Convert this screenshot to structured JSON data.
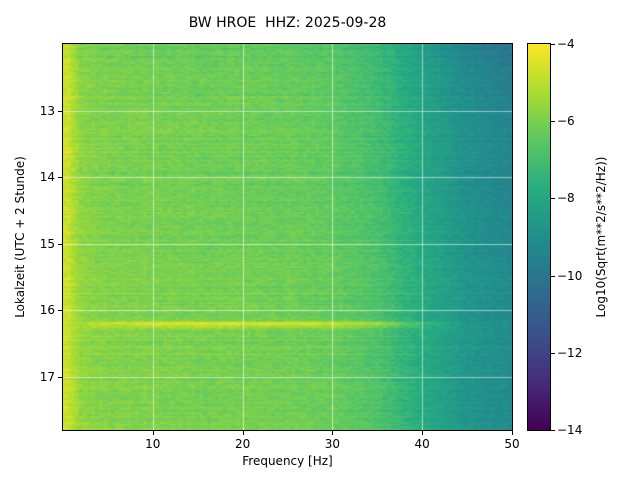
{
  "figure": {
    "background": "#ffffff"
  },
  "chart_data": {
    "type": "heatmap",
    "title": "BW HROE  HHZ: 2025-09-28",
    "xlabel": "Frequency [Hz]",
    "ylabel": "Lokalzeit (UTC + 2 Stunde)",
    "colorbar_label": "Log10(Sqrt(m**2/s**2/Hz))",
    "colormap": "viridis",
    "grid": true,
    "xlim": [
      0,
      50
    ],
    "tlim": [
      12.0,
      17.8
    ],
    "clim": [
      -14,
      -4
    ],
    "xticks": [
      10,
      20,
      30,
      40,
      50
    ],
    "xtick_labels": [
      "10",
      "20",
      "30",
      "40",
      "50"
    ],
    "yticks": [
      13,
      14,
      15,
      16,
      17
    ],
    "ytick_labels": [
      "13",
      "14",
      "15",
      "16",
      "17"
    ],
    "colorbar_ticks": [
      -4,
      -6,
      -8,
      -10,
      -12,
      -14
    ],
    "colorbar_tick_labels": [
      "−4",
      "−6",
      "−8",
      "−10",
      "−12",
      "−14"
    ],
    "freq_bins": [
      0.5,
      1,
      2,
      4,
      7,
      10,
      15,
      20,
      25,
      30,
      35,
      40,
      45,
      50
    ],
    "time_bins": [
      12.0,
      12.4,
      12.8,
      13.2,
      13.6,
      14.0,
      14.4,
      14.8,
      15.2,
      15.6,
      16.0,
      16.15,
      16.2,
      16.3,
      16.4,
      16.8,
      17.2,
      17.6,
      17.8
    ],
    "values": [
      [
        -4.9,
        -5.3,
        -5.9,
        -6.1,
        -6.2,
        -6.3,
        -6.4,
        -6.4,
        -6.5,
        -6.7,
        -7.3,
        -8.5,
        -9.6,
        -10.2
      ],
      [
        -4.8,
        -5.2,
        -5.8,
        -6.0,
        -6.1,
        -6.2,
        -6.3,
        -6.3,
        -6.4,
        -6.6,
        -7.2,
        -8.3,
        -9.3,
        -9.9
      ],
      [
        -4.8,
        -5.1,
        -5.7,
        -5.9,
        -6.0,
        -6.1,
        -6.2,
        -6.2,
        -6.3,
        -6.5,
        -7.1,
        -8.2,
        -9.1,
        -9.7
      ],
      [
        -4.8,
        -5.2,
        -5.8,
        -6.0,
        -6.0,
        -6.0,
        -6.1,
        -6.2,
        -6.3,
        -6.5,
        -7.0,
        -8.1,
        -9.0,
        -9.5
      ],
      [
        -4.7,
        -5.1,
        -5.7,
        -5.9,
        -6.0,
        -6.1,
        -6.2,
        -6.2,
        -6.3,
        -6.4,
        -7.0,
        -8.0,
        -8.9,
        -9.4
      ],
      [
        -4.8,
        -5.2,
        -5.8,
        -6.0,
        -6.1,
        -6.1,
        -6.2,
        -6.3,
        -6.3,
        -6.5,
        -7.1,
        -8.1,
        -9.0,
        -9.5
      ],
      [
        -4.8,
        -5.1,
        -5.7,
        -5.9,
        -6.0,
        -6.0,
        -6.1,
        -6.2,
        -6.3,
        -6.4,
        -6.9,
        -8.0,
        -8.9,
        -9.4
      ],
      [
        -4.7,
        -5.1,
        -5.6,
        -5.9,
        -6.0,
        -6.1,
        -6.1,
        -6.2,
        -6.2,
        -6.4,
        -6.9,
        -7.9,
        -8.8,
        -9.3
      ],
      [
        -4.8,
        -5.2,
        -5.7,
        -5.9,
        -5.9,
        -6.0,
        -6.1,
        -6.1,
        -6.2,
        -6.3,
        -6.8,
        -7.9,
        -8.8,
        -9.3
      ],
      [
        -4.7,
        -5.1,
        -5.6,
        -5.8,
        -5.9,
        -6.0,
        -6.0,
        -6.1,
        -6.2,
        -6.3,
        -6.8,
        -7.8,
        -8.7,
        -9.2
      ],
      [
        -4.8,
        -5.1,
        -5.7,
        -5.9,
        -6.0,
        -6.0,
        -6.1,
        -6.1,
        -6.2,
        -6.4,
        -6.9,
        -7.9,
        -8.8,
        -9.3
      ],
      [
        -4.8,
        -5.1,
        -5.6,
        -5.8,
        -5.9,
        -6.0,
        -6.0,
        -6.1,
        -6.2,
        -6.3,
        -6.8,
        -7.9,
        -8.8,
        -9.3
      ],
      [
        -4.8,
        -5.0,
        -5.3,
        -5.0,
        -4.8,
        -4.6,
        -4.5,
        -4.5,
        -4.6,
        -4.8,
        -5.4,
        -7.2,
        -8.6,
        -9.2
      ],
      [
        -4.8,
        -5.1,
        -5.6,
        -5.8,
        -5.9,
        -6.0,
        -6.0,
        -6.1,
        -6.2,
        -6.3,
        -6.8,
        -7.8,
        -8.7,
        -9.2
      ],
      [
        -4.8,
        -5.1,
        -5.6,
        -5.8,
        -5.9,
        -6.0,
        -6.0,
        -6.1,
        -6.2,
        -6.3,
        -6.8,
        -7.8,
        -8.7,
        -9.2
      ],
      [
        -4.7,
        -5.1,
        -5.6,
        -5.8,
        -5.9,
        -5.9,
        -6.0,
        -6.1,
        -6.1,
        -6.3,
        -6.8,
        -7.8,
        -8.7,
        -9.2
      ],
      [
        -4.8,
        -5.1,
        -5.7,
        -5.9,
        -5.9,
        -6.0,
        -6.1,
        -6.1,
        -6.2,
        -6.3,
        -6.8,
        -7.9,
        -8.8,
        -9.3
      ],
      [
        -4.7,
        -5.0,
        -5.6,
        -5.8,
        -5.9,
        -5.9,
        -6.0,
        -6.0,
        -6.1,
        -6.2,
        -6.7,
        -7.8,
        -8.7,
        -9.2
      ],
      [
        -4.8,
        -5.1,
        -5.6,
        -5.8,
        -5.9,
        -6.0,
        -6.0,
        -6.1,
        -6.1,
        -6.3,
        -6.8,
        -7.8,
        -8.7,
        -9.2
      ]
    ]
  }
}
